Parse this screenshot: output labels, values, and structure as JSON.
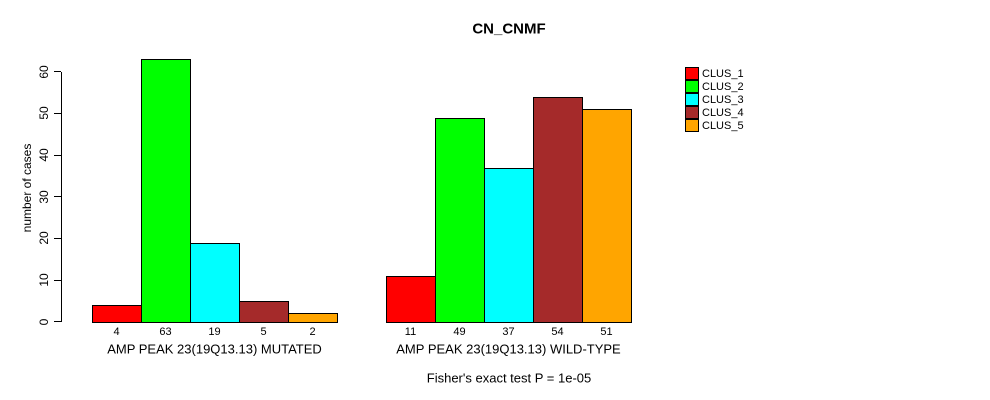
{
  "chart_data": {
    "type": "bar",
    "title": "CN_CNMF",
    "ylabel": "number of cases",
    "ylim": [
      0,
      60
    ],
    "yticks": [
      0,
      10,
      20,
      30,
      40,
      50,
      60
    ],
    "grid": false,
    "legend_position": "right",
    "clusters": [
      {
        "name": "CLUS_1",
        "color": "#FF0000"
      },
      {
        "name": "CLUS_2",
        "color": "#00FF00"
      },
      {
        "name": "CLUS_3",
        "color": "#00FFFF"
      },
      {
        "name": "CLUS_4",
        "color": "#A52A2A"
      },
      {
        "name": "CLUS_5",
        "color": "#FFA500"
      }
    ],
    "groups": [
      {
        "label": "AMP PEAK 23(19Q13.13) MUTATED",
        "values": [
          4,
          63,
          19,
          5,
          2
        ]
      },
      {
        "label": "AMP PEAK 23(19Q13.13) WILD-TYPE",
        "values": [
          11,
          49,
          37,
          54,
          51
        ]
      }
    ],
    "annotation": "Fisher's exact test P = 1e-05"
  }
}
